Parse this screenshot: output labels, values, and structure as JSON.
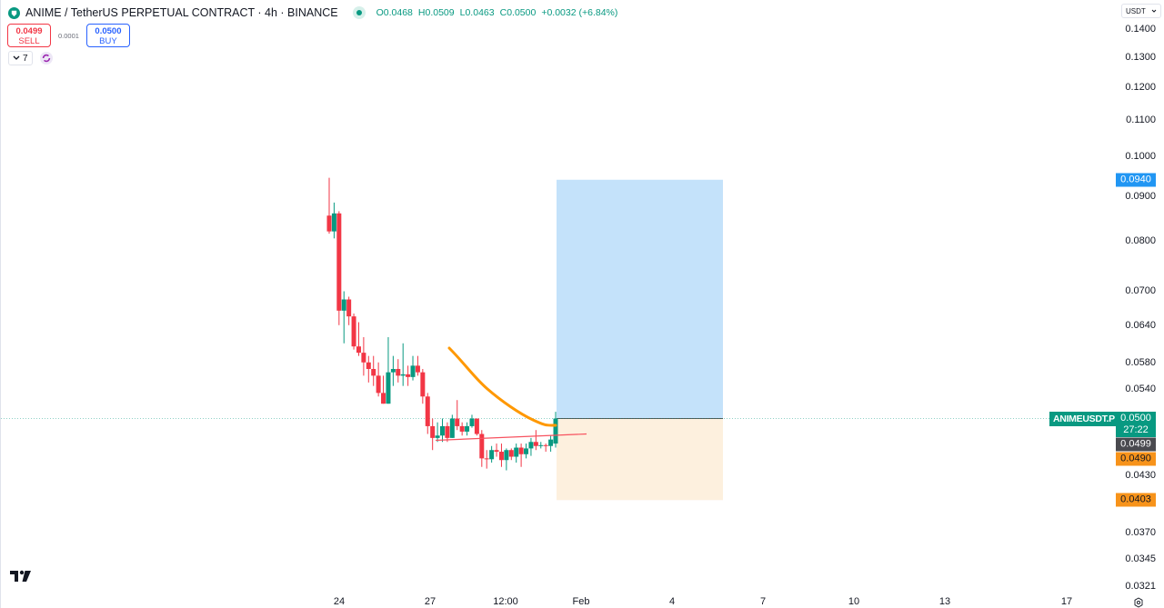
{
  "header": {
    "title": "ANIME / TetherUS PERPETUAL CONTRACT · 4h · BINANCE",
    "ohlc": {
      "open_label": "O",
      "open": "0.0468",
      "high_label": "H",
      "high": "0.0509",
      "low_label": "L",
      "low": "0.0463",
      "close_label": "C",
      "close": "0.0500",
      "change": "+0.0032 (+6.84%)"
    }
  },
  "trade": {
    "sell_price": "0.0499",
    "sell_label": "SELL",
    "spread": "0.0001",
    "buy_price": "0.0500",
    "buy_label": "BUY"
  },
  "indicators": {
    "count": "7"
  },
  "price_axis": {
    "currency": "USDT",
    "ticks": [
      "0.1400",
      "0.1300",
      "0.1200",
      "0.1100",
      "0.1000",
      "0.0900",
      "0.0800",
      "0.0700",
      "0.0640",
      "0.0580",
      "0.0540",
      "0.0430",
      "0.0370",
      "0.0345",
      "0.0321"
    ],
    "target_label": "0.0940",
    "symbol_label": "ANIMEUSDT.P",
    "last_price": "0.0500",
    "countdown": "27:22",
    "bid_label": "0.0499",
    "ma_label": "0.0490",
    "stop_label": "0.0403"
  },
  "time_axis": {
    "ticks": [
      "24",
      "27",
      "12:00",
      "Feb",
      "4",
      "7",
      "10",
      "13",
      "17"
    ]
  },
  "colors": {
    "up": "#089981",
    "down": "#f23645",
    "ma_line": "#ff9800",
    "target_zone": "#c4e2fa",
    "stop_zone": "#fdf0de",
    "target_label": "#2196f3",
    "stop_label": "#f7931a"
  },
  "chart_data": {
    "type": "candlestick",
    "title": "ANIME / TetherUS PERPETUAL CONTRACT · 4h · BINANCE",
    "scale": "log",
    "ylim": [
      0.0315,
      0.145
    ],
    "y_ticks": [
      0.14,
      0.13,
      0.12,
      0.11,
      0.1,
      0.09,
      0.08,
      0.07,
      0.064,
      0.058,
      0.054,
      0.043,
      0.037,
      0.0345,
      0.0321
    ],
    "x_ticks": [
      "24",
      "27",
      "12:00",
      "Feb",
      "4",
      "7",
      "10",
      "13",
      "17"
    ],
    "candles": [
      {
        "o": 0.0855,
        "h": 0.0945,
        "l": 0.0815,
        "c": 0.082
      },
      {
        "o": 0.082,
        "h": 0.0885,
        "l": 0.0805,
        "c": 0.086
      },
      {
        "o": 0.086,
        "h": 0.0865,
        "l": 0.064,
        "c": 0.0665
      },
      {
        "o": 0.0665,
        "h": 0.07,
        "l": 0.061,
        "c": 0.0685
      },
      {
        "o": 0.0685,
        "h": 0.069,
        "l": 0.064,
        "c": 0.0655
      },
      {
        "o": 0.0655,
        "h": 0.066,
        "l": 0.06,
        "c": 0.0605
      },
      {
        "o": 0.0605,
        "h": 0.0645,
        "l": 0.059,
        "c": 0.0595
      },
      {
        "o": 0.0595,
        "h": 0.062,
        "l": 0.056,
        "c": 0.058
      },
      {
        "o": 0.058,
        "h": 0.059,
        "l": 0.055,
        "c": 0.057
      },
      {
        "o": 0.057,
        "h": 0.059,
        "l": 0.0545,
        "c": 0.056
      },
      {
        "o": 0.056,
        "h": 0.058,
        "l": 0.053,
        "c": 0.0535
      },
      {
        "o": 0.0535,
        "h": 0.056,
        "l": 0.052,
        "c": 0.052
      },
      {
        "o": 0.052,
        "h": 0.062,
        "l": 0.052,
        "c": 0.0565
      },
      {
        "o": 0.0565,
        "h": 0.059,
        "l": 0.0545,
        "c": 0.057
      },
      {
        "o": 0.057,
        "h": 0.0585,
        "l": 0.055,
        "c": 0.056
      },
      {
        "o": 0.056,
        "h": 0.061,
        "l": 0.0545,
        "c": 0.0562
      },
      {
        "o": 0.0562,
        "h": 0.0575,
        "l": 0.0545,
        "c": 0.0558
      },
      {
        "o": 0.0558,
        "h": 0.059,
        "l": 0.0553,
        "c": 0.0575
      },
      {
        "o": 0.0575,
        "h": 0.059,
        "l": 0.056,
        "c": 0.0565
      },
      {
        "o": 0.0565,
        "h": 0.057,
        "l": 0.052,
        "c": 0.053
      },
      {
        "o": 0.053,
        "h": 0.0535,
        "l": 0.048,
        "c": 0.049
      },
      {
        "o": 0.049,
        "h": 0.05,
        "l": 0.046,
        "c": 0.0475
      },
      {
        "o": 0.0475,
        "h": 0.0495,
        "l": 0.047,
        "c": 0.0478
      },
      {
        "o": 0.0478,
        "h": 0.05,
        "l": 0.047,
        "c": 0.049
      },
      {
        "o": 0.049,
        "h": 0.0495,
        "l": 0.047,
        "c": 0.0475
      },
      {
        "o": 0.0475,
        "h": 0.0505,
        "l": 0.0475,
        "c": 0.05
      },
      {
        "o": 0.05,
        "h": 0.0525,
        "l": 0.0485,
        "c": 0.049
      },
      {
        "o": 0.049,
        "h": 0.0495,
        "l": 0.0478,
        "c": 0.0483
      },
      {
        "o": 0.0483,
        "h": 0.0495,
        "l": 0.0478,
        "c": 0.049
      },
      {
        "o": 0.049,
        "h": 0.0505,
        "l": 0.0488,
        "c": 0.05
      },
      {
        "o": 0.05,
        "h": 0.05,
        "l": 0.0478,
        "c": 0.048
      },
      {
        "o": 0.048,
        "h": 0.0485,
        "l": 0.044,
        "c": 0.045
      },
      {
        "o": 0.045,
        "h": 0.046,
        "l": 0.0438,
        "c": 0.0449
      },
      {
        "o": 0.0449,
        "h": 0.0465,
        "l": 0.0445,
        "c": 0.046
      },
      {
        "o": 0.046,
        "h": 0.0468,
        "l": 0.0452,
        "c": 0.0458
      },
      {
        "o": 0.0458,
        "h": 0.0468,
        "l": 0.044,
        "c": 0.0448
      },
      {
        "o": 0.0448,
        "h": 0.0462,
        "l": 0.0436,
        "c": 0.046
      },
      {
        "o": 0.046,
        "h": 0.0462,
        "l": 0.0448,
        "c": 0.0452
      },
      {
        "o": 0.0452,
        "h": 0.0468,
        "l": 0.0445,
        "c": 0.0463
      },
      {
        "o": 0.0463,
        "h": 0.0468,
        "l": 0.044,
        "c": 0.0455
      },
      {
        "o": 0.0455,
        "h": 0.0468,
        "l": 0.045,
        "c": 0.0462
      },
      {
        "o": 0.0462,
        "h": 0.0475,
        "l": 0.0453,
        "c": 0.047
      },
      {
        "o": 0.047,
        "h": 0.0485,
        "l": 0.046,
        "c": 0.0465
      },
      {
        "o": 0.0465,
        "h": 0.047,
        "l": 0.0462,
        "c": 0.0466
      },
      {
        "o": 0.0466,
        "h": 0.0468,
        "l": 0.0458,
        "c": 0.0465
      },
      {
        "o": 0.0465,
        "h": 0.0478,
        "l": 0.0458,
        "c": 0.0473
      },
      {
        "o": 0.0468,
        "h": 0.0509,
        "l": 0.0463,
        "c": 0.05
      }
    ],
    "moving_average": {
      "color": "#ff9800",
      "approx_points": [
        [
          0.06,
          "start"
        ],
        [
          0.0575,
          ""
        ],
        [
          0.0545,
          ""
        ],
        [
          0.052,
          ""
        ],
        [
          0.0505,
          ""
        ],
        [
          0.0492,
          "end"
        ]
      ]
    },
    "trendline": {
      "from": 0.0472,
      "to": 0.048,
      "color": "#f7525f"
    },
    "long_position": {
      "entry": 0.05,
      "target": 0.094,
      "stop": 0.0403
    },
    "last_price_line": 0.05
  }
}
